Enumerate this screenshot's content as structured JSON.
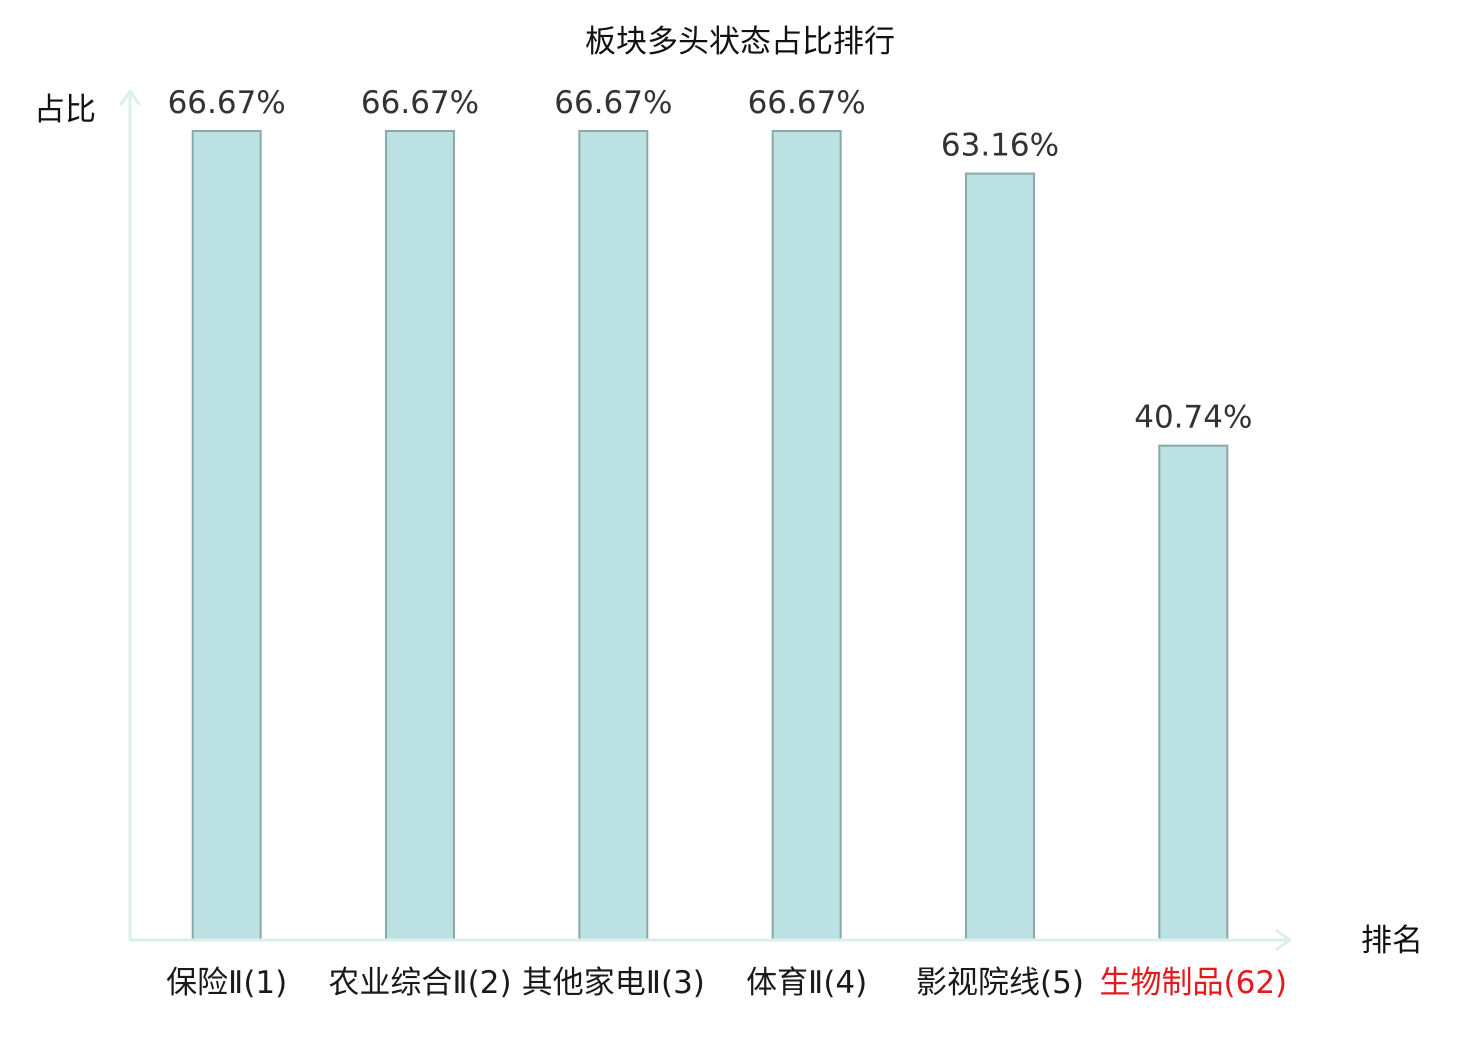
{
  "chart_data": {
    "type": "bar",
    "title": "板块多头状态占比排行",
    "xlabel": "排名",
    "ylabel": "占比",
    "categories": [
      "保险Ⅱ(1)",
      "农业综合Ⅱ(2)",
      "其他家电Ⅱ(3)",
      "体育Ⅱ(4)",
      "影视院线(5)",
      "生物制品(62)"
    ],
    "values": [
      66.67,
      66.67,
      66.67,
      66.67,
      63.16,
      40.74
    ],
    "data_labels": [
      "66.67%",
      "66.67%",
      "66.67%",
      "66.67%",
      "63.16%",
      "40.74%"
    ],
    "ylim": [
      0,
      66.67
    ],
    "grid": false,
    "highlight_index": 5
  },
  "colors": {
    "bar_fill": "#bce1e3",
    "bar_stroke": "#88a8aa",
    "axis": "#dcefeb",
    "highlight": "#e3191c"
  }
}
